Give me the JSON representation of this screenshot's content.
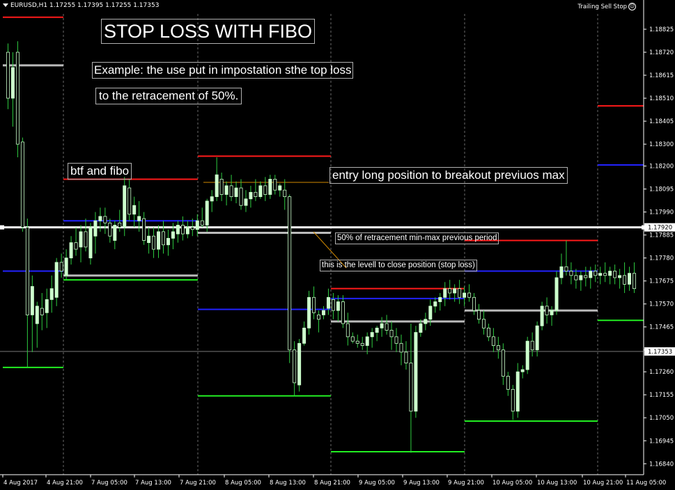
{
  "header": {
    "symbol_label": "EURUSD,H1  1.17255 1.17395 1.17255 1.17353",
    "ea_label": "Trailing Sell Stop"
  },
  "notes": {
    "title": "STOP LOSS WITH FIBO",
    "example_line1": "Example: the use put in impostation sthe top loss",
    "example_line2": "to the retracement of 50%.",
    "btf": "btf and fibo",
    "entry": "entry long position to breakout previuos max",
    "fifty": "50% of retracement min-max previous period",
    "stoploss": "this is the levell to close position (stop loss)"
  },
  "colors": {
    "background": "#000000",
    "bull_candle": "#ccffcc",
    "wick": "#2ecc40",
    "axis": "#ffffff",
    "grid": "#6a6a6a",
    "max_line": "#ff1a1a",
    "min_line": "#22ee22",
    "blue_line": "#2222ff",
    "gray_line": "#bbbbbb",
    "level_line": "#ffffff",
    "trend_line": "#d28a00"
  },
  "chart_data": {
    "type": "candlestick",
    "symbol": "EURUSD",
    "timeframe": "H1",
    "y_ticks": [
      1.18825,
      1.1872,
      1.18615,
      1.1851,
      1.18405,
      1.183,
      1.182,
      1.18095,
      1.1799,
      1.17885,
      1.1778,
      1.17675,
      1.1757,
      1.17465,
      1.1736,
      1.1726,
      1.17155,
      1.1705,
      1.16945,
      1.1684
    ],
    "y_labels": [
      "1.18825",
      "1.18720",
      "1.18615",
      "1.18510",
      "1.18405",
      "1.18300",
      "1.18200",
      "1.18095",
      "1.17990",
      "1.17885",
      "1.17780",
      "1.17675",
      "1.17570",
      "1.17465",
      "1.17360",
      "1.17260",
      "1.17155",
      "1.17050",
      "1.16945",
      "1.16840"
    ],
    "ylim": [
      1.1679,
      1.18895
    ],
    "x_labels": [
      "4 Aug 2017",
      "4 Aug 21:00",
      "7 Aug 05:00",
      "7 Aug 13:00",
      "7 Aug 21:00",
      "8 Aug 05:00",
      "8 Aug 13:00",
      "8 Aug 21:00",
      "9 Aug 05:00",
      "9 Aug 13:00",
      "9 Aug 21:00",
      "10 Aug 05:00",
      "10 Aug 13:00",
      "10 Aug 21:00",
      "11 Aug 05:00"
    ],
    "current_price": {
      "value": 1.17353,
      "label": "1.17353"
    },
    "level_50": {
      "value": 1.1792,
      "label": "1.17920"
    },
    "periods": [
      {
        "max": 1.1888,
        "min": 1.1728,
        "blue": 1.1772,
        "gray": 1.1866
      },
      {
        "max": 1.1814,
        "min": 1.1768,
        "blue": 1.1795,
        "gray": 1.177
      },
      {
        "max": 1.18245,
        "min": 1.1715,
        "blue": 1.17545,
        "gray": 1.17895
      },
      {
        "max": 1.1764,
        "min": 1.16895,
        "blue": 1.17595,
        "gray": 1.1749
      },
      {
        "max": 1.1786,
        "min": 1.17035,
        "blue": 1.1772,
        "gray": 1.1754
      },
      {
        "max": 1.18475,
        "min": 1.17495,
        "blue": 1.18205,
        "gray": null
      }
    ],
    "candles": [
      [
        1.1872,
        1.1876,
        1.1846,
        1.1851
      ],
      [
        1.1851,
        1.1872,
        1.1838,
        1.1865
      ],
      [
        1.1872,
        1.1877,
        1.1824,
        1.183
      ],
      [
        1.1831,
        1.1833,
        1.179,
        1.1792
      ],
      [
        1.1792,
        1.1796,
        1.1728,
        1.1752
      ],
      [
        1.1752,
        1.177,
        1.1735,
        1.1765
      ],
      [
        1.1748,
        1.1758,
        1.1737,
        1.1756
      ],
      [
        1.1755,
        1.1762,
        1.1745,
        1.1752
      ],
      [
        1.1753,
        1.1764,
        1.1746,
        1.1759
      ],
      [
        1.1759,
        1.177,
        1.1753,
        1.1764
      ],
      [
        1.176,
        1.1778,
        1.1756,
        1.1776
      ],
      [
        1.1776,
        1.178,
        1.1769,
        1.1772
      ],
      [
        1.177,
        1.1782,
        1.1768,
        1.1778
      ],
      [
        1.1778,
        1.1788,
        1.1775,
        1.1785
      ],
      [
        1.1785,
        1.1792,
        1.1779,
        1.1782
      ],
      [
        1.1783,
        1.1793,
        1.1776,
        1.179
      ],
      [
        1.179,
        1.1796,
        1.1781,
        1.1783
      ],
      [
        1.1778,
        1.1794,
        1.1775,
        1.1792
      ],
      [
        1.1788,
        1.1799,
        1.178,
        1.1795
      ],
      [
        1.1795,
        1.1801,
        1.179,
        1.1797
      ],
      [
        1.1797,
        1.1801,
        1.1789,
        1.1794
      ],
      [
        1.1794,
        1.1796,
        1.1785,
        1.1788
      ],
      [
        1.1786,
        1.1795,
        1.1782,
        1.1793
      ],
      [
        1.1794,
        1.18,
        1.179,
        1.1792
      ],
      [
        1.1792,
        1.1815,
        1.1788,
        1.1811
      ],
      [
        1.181,
        1.1814,
        1.1795,
        1.1798
      ],
      [
        1.1798,
        1.1806,
        1.1792,
        1.1802
      ],
      [
        1.1795,
        1.1804,
        1.179,
        1.1797
      ],
      [
        1.1796,
        1.1799,
        1.1784,
        1.1786
      ],
      [
        1.1785,
        1.1792,
        1.178,
        1.1788
      ],
      [
        1.1788,
        1.1792,
        1.1778,
        1.1782
      ],
      [
        1.1782,
        1.1793,
        1.1778,
        1.179
      ],
      [
        1.179,
        1.1795,
        1.178,
        1.1784
      ],
      [
        1.1784,
        1.1791,
        1.1779,
        1.1787
      ],
      [
        1.1787,
        1.1794,
        1.1782,
        1.179
      ],
      [
        1.1789,
        1.1795,
        1.1785,
        1.1793
      ],
      [
        1.1793,
        1.1797,
        1.1786,
        1.1789
      ],
      [
        1.1789,
        1.1795,
        1.1787,
        1.1792
      ],
      [
        1.1792,
        1.1796,
        1.1788,
        1.1791
      ],
      [
        1.1791,
        1.1798,
        1.1788,
        1.1795
      ],
      [
        1.1795,
        1.1801,
        1.1792,
        1.1793
      ],
      [
        1.1793,
        1.1805,
        1.179,
        1.1804
      ],
      [
        1.1804,
        1.1809,
        1.1799,
        1.1806
      ],
      [
        1.1806,
        1.1824,
        1.1804,
        1.1816
      ],
      [
        1.1814,
        1.1817,
        1.1804,
        1.1807
      ],
      [
        1.1807,
        1.1813,
        1.1802,
        1.1811
      ],
      [
        1.1811,
        1.1816,
        1.1804,
        1.1806
      ],
      [
        1.1806,
        1.1813,
        1.1803,
        1.181
      ],
      [
        1.181,
        1.1814,
        1.18,
        1.1802
      ],
      [
        1.1802,
        1.1809,
        1.1799,
        1.1805
      ],
      [
        1.1805,
        1.1811,
        1.1801,
        1.1808
      ],
      [
        1.1808,
        1.1814,
        1.1804,
        1.1806
      ],
      [
        1.1806,
        1.1813,
        1.1805,
        1.1811
      ],
      [
        1.1811,
        1.1815,
        1.1804,
        1.1807
      ],
      [
        1.1807,
        1.1816,
        1.1805,
        1.1814
      ],
      [
        1.1814,
        1.1816,
        1.1807,
        1.1809
      ],
      [
        1.1809,
        1.1812,
        1.1806,
        1.1811
      ],
      [
        1.1809,
        1.1814,
        1.18,
        1.1806
      ],
      [
        1.1806,
        1.1807,
        1.173,
        1.1736
      ],
      [
        1.1736,
        1.174,
        1.1715,
        1.1721
      ],
      [
        1.172,
        1.1741,
        1.1717,
        1.1739
      ],
      [
        1.1739,
        1.1749,
        1.1738,
        1.1746
      ],
      [
        1.1746,
        1.1763,
        1.1743,
        1.176
      ],
      [
        1.176,
        1.1765,
        1.175,
        1.1753
      ],
      [
        1.1752,
        1.1754,
        1.1744,
        1.175
      ],
      [
        1.1752,
        1.1756,
        1.175,
        1.1754
      ],
      [
        1.1755,
        1.1764,
        1.1752,
        1.176
      ],
      [
        1.1759,
        1.1762,
        1.175,
        1.1754
      ],
      [
        1.1754,
        1.1761,
        1.1749,
        1.1758
      ],
      [
        1.1758,
        1.1761,
        1.1746,
        1.1748
      ],
      [
        1.1748,
        1.1753,
        1.1738,
        1.1742
      ],
      [
        1.1742,
        1.1744,
        1.1739,
        1.174
      ],
      [
        1.174,
        1.1743,
        1.1737,
        1.1739
      ],
      [
        1.1739,
        1.1742,
        1.1736,
        1.1738
      ],
      [
        1.1738,
        1.1744,
        1.1734,
        1.1742
      ],
      [
        1.1742,
        1.1746,
        1.1737,
        1.1744
      ],
      [
        1.1744,
        1.1747,
        1.174,
        1.1746
      ],
      [
        1.1746,
        1.1751,
        1.1742,
        1.1748
      ],
      [
        1.1748,
        1.1752,
        1.1743,
        1.1745
      ],
      [
        1.1745,
        1.1749,
        1.1736,
        1.1742
      ],
      [
        1.1742,
        1.1746,
        1.1735,
        1.1739
      ],
      [
        1.1739,
        1.1743,
        1.1729,
        1.1735
      ],
      [
        1.1735,
        1.174,
        1.1727,
        1.173
      ],
      [
        1.173,
        1.1748,
        1.1689,
        1.1708
      ],
      [
        1.1708,
        1.1747,
        1.1705,
        1.1744
      ],
      [
        1.1744,
        1.175,
        1.1742,
        1.1748
      ],
      [
        1.1748,
        1.1753,
        1.1745,
        1.175
      ],
      [
        1.175,
        1.1759,
        1.1747,
        1.1756
      ],
      [
        1.1756,
        1.176,
        1.1753,
        1.1758
      ],
      [
        1.1758,
        1.1762,
        1.1754,
        1.176
      ],
      [
        1.176,
        1.1767,
        1.1756,
        1.1764
      ],
      [
        1.1764,
        1.1768,
        1.1759,
        1.1762
      ],
      [
        1.1762,
        1.1766,
        1.1758,
        1.1764
      ],
      [
        1.1764,
        1.1768,
        1.1757,
        1.176
      ],
      [
        1.176,
        1.1765,
        1.1756,
        1.1762
      ],
      [
        1.1762,
        1.1766,
        1.1758,
        1.176
      ],
      [
        1.176,
        1.1762,
        1.1752,
        1.1754
      ],
      [
        1.1754,
        1.1757,
        1.1748,
        1.175
      ],
      [
        1.175,
        1.1754,
        1.1743,
        1.1746
      ],
      [
        1.1746,
        1.1748,
        1.174,
        1.1742
      ],
      [
        1.1742,
        1.1746,
        1.1735,
        1.1738
      ],
      [
        1.1738,
        1.1742,
        1.1732,
        1.1736
      ],
      [
        1.1736,
        1.1739,
        1.172,
        1.1724
      ],
      [
        1.1724,
        1.1726,
        1.1715,
        1.1718
      ],
      [
        1.1718,
        1.172,
        1.1704,
        1.1708
      ],
      [
        1.1708,
        1.173,
        1.1705,
        1.1726
      ],
      [
        1.1726,
        1.1729,
        1.1723,
        1.1727
      ],
      [
        1.1727,
        1.1742,
        1.1725,
        1.174
      ],
      [
        1.174,
        1.1744,
        1.1733,
        1.1736
      ],
      [
        1.1736,
        1.1749,
        1.1733,
        1.1747
      ],
      [
        1.1747,
        1.1758,
        1.1745,
        1.1756
      ],
      [
        1.1756,
        1.176,
        1.1748,
        1.1752
      ],
      [
        1.1752,
        1.1756,
        1.1747,
        1.1754
      ],
      [
        1.1754,
        1.1772,
        1.1752,
        1.1769
      ],
      [
        1.1769,
        1.178,
        1.1766,
        1.1774
      ],
      [
        1.1774,
        1.1786,
        1.177,
        1.1772
      ],
      [
        1.1772,
        1.1776,
        1.1766,
        1.177
      ],
      [
        1.177,
        1.1773,
        1.1764,
        1.1768
      ],
      [
        1.1768,
        1.1772,
        1.1763,
        1.177
      ],
      [
        1.177,
        1.1774,
        1.1765,
        1.1769
      ],
      [
        1.1769,
        1.1774,
        1.1764,
        1.1772
      ],
      [
        1.1772,
        1.1775,
        1.1767,
        1.177
      ],
      [
        1.177,
        1.1774,
        1.1766,
        1.1771
      ],
      [
        1.1771,
        1.1776,
        1.1767,
        1.177
      ],
      [
        1.177,
        1.1774,
        1.1766,
        1.1772
      ],
      [
        1.1772,
        1.1775,
        1.1766,
        1.1769
      ],
      [
        1.1769,
        1.1773,
        1.1764,
        1.177
      ],
      [
        1.177,
        1.1776,
        1.1762,
        1.1766
      ],
      [
        1.1766,
        1.1774,
        1.1763,
        1.1771
      ],
      [
        1.1771,
        1.1776,
        1.1762,
        1.1764
      ]
    ]
  }
}
